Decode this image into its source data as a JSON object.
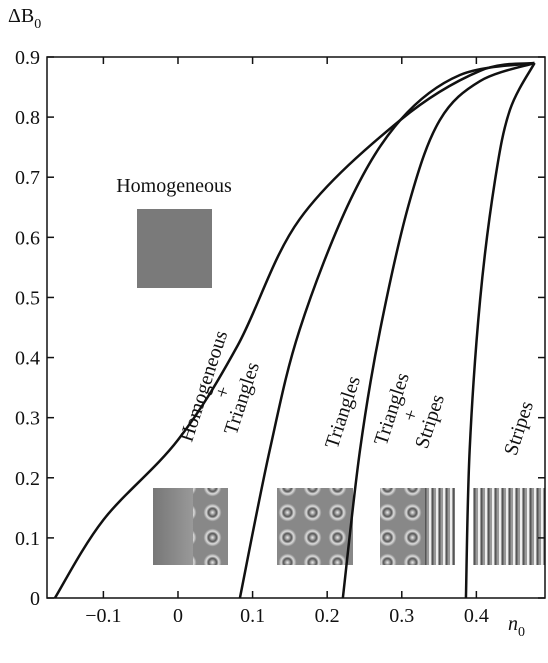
{
  "chart_data": {
    "type": "line",
    "ylabel": {
      "main": "ΔB",
      "sub": "0"
    },
    "xlabel": {
      "main": "n",
      "sub": "0"
    },
    "xlim": [
      -0.1756,
      0.492
    ],
    "ylim": [
      0,
      0.9
    ],
    "xticks": [
      {
        "value": -0.1,
        "label": "−0.1"
      },
      0,
      0.1,
      0.2,
      0.3,
      0.4
    ],
    "yticks": [
      0,
      0.1,
      0.2,
      0.3,
      0.4,
      0.5,
      0.6,
      0.7,
      0.8,
      0.9
    ],
    "color": "#111111",
    "curves": [
      {
        "x": [
          -0.165,
          -0.1,
          0,
          0.08,
          0.163,
          0.298,
          0.405,
          0.478
        ],
        "y": [
          0,
          0.13,
          0.263,
          0.42,
          0.63,
          0.795,
          0.877,
          0.89
        ]
      },
      {
        "x": [
          0.083,
          0.123,
          0.163,
          0.231,
          0.298,
          0.378,
          0.478
        ],
        "y": [
          0,
          0.246,
          0.446,
          0.662,
          0.795,
          0.87,
          0.89
        ]
      },
      {
        "x": [
          0.221,
          0.244,
          0.271,
          0.311,
          0.351,
          0.405,
          0.478
        ],
        "y": [
          0,
          0.246,
          0.446,
          0.662,
          0.795,
          0.86,
          0.89
        ]
      },
      {
        "x": [
          0.386,
          0.391,
          0.405,
          0.425,
          0.445,
          0.478
        ],
        "y": [
          0,
          0.246,
          0.496,
          0.695,
          0.812,
          0.89
        ]
      }
    ],
    "annotations": [
      "Homogeneous"
    ],
    "region_labels": [
      {
        "lines": [
          "Homogeneous",
          "+",
          "Triangles"
        ]
      },
      {
        "lines": [
          "Triangles"
        ]
      },
      {
        "lines": [
          "Triangles",
          "+",
          "Stripes"
        ]
      },
      {
        "lines": [
          "Stripes"
        ]
      }
    ]
  }
}
